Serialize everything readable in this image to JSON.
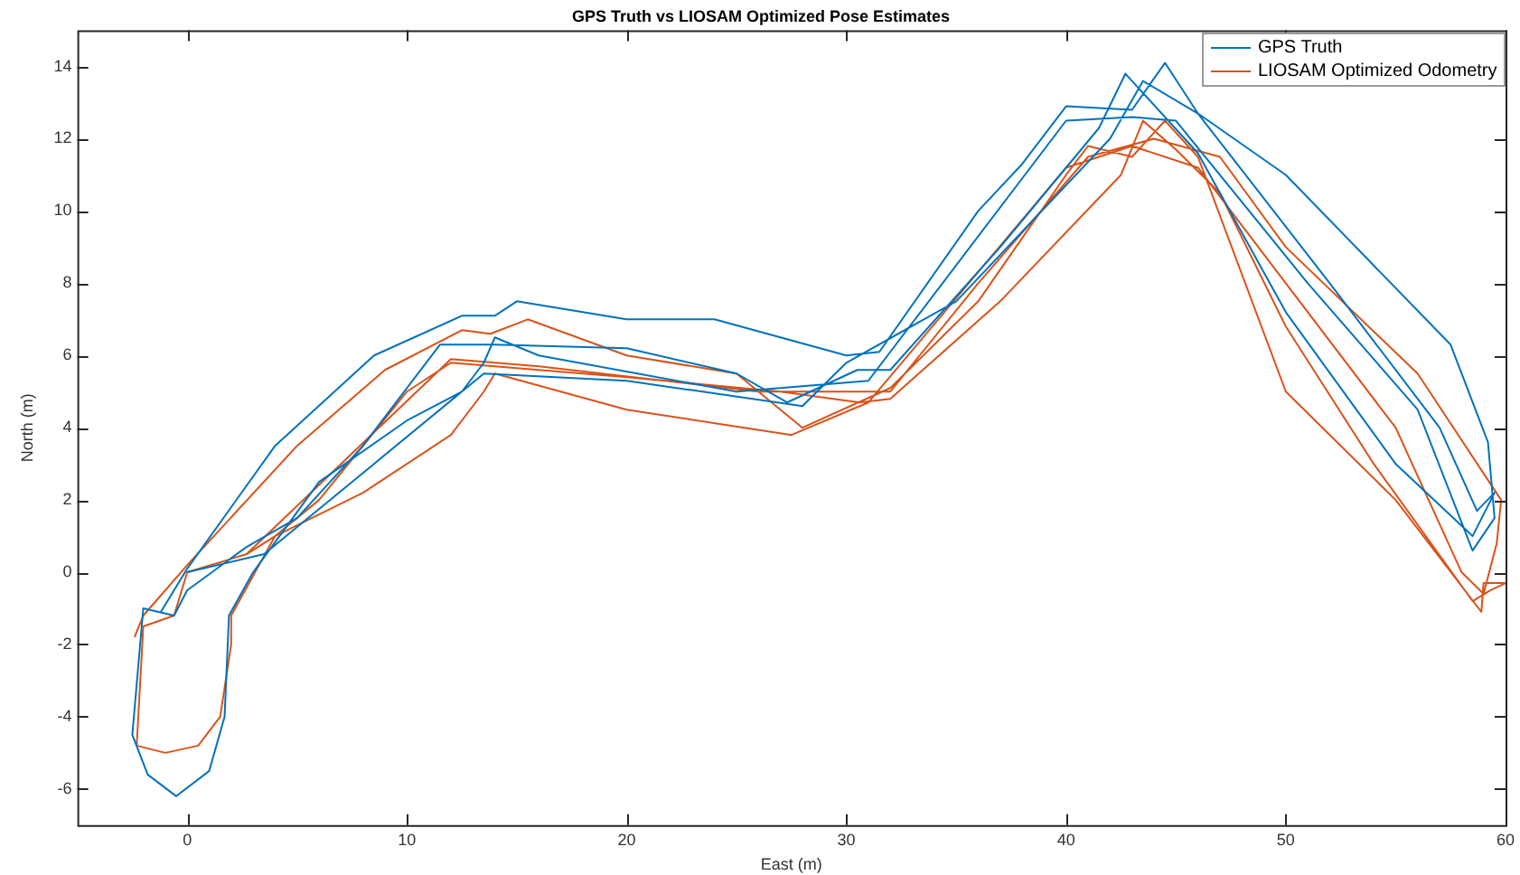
{
  "chart_data": {
    "type": "line",
    "title": "GPS Truth vs LIOSAM Optimized Pose Estimates",
    "xlabel": "East (m)",
    "ylabel": "North (m)",
    "xlim": [
      -5,
      60
    ],
    "xticks": [
      0,
      10,
      20,
      30,
      40,
      50,
      60
    ],
    "ylim": [
      -7,
      15
    ],
    "yticks": [
      -6,
      -4,
      -2,
      0,
      2,
      4,
      6,
      8,
      10,
      12,
      14
    ],
    "grid": false,
    "legend": "top right",
    "marker": "none",
    "line_style": "solid",
    "series": [
      {
        "name": "GPS Truth",
        "color": "#0072bd",
        "x": [
          -1.2,
          0,
          4,
          8.5,
          12.5,
          14,
          15,
          20,
          24,
          30,
          31.5,
          36,
          38,
          40,
          43,
          44.5,
          46,
          52,
          57,
          58.7,
          59.5,
          58.5,
          55,
          50,
          46,
          42.7,
          41.5,
          37,
          32,
          30.5,
          27.3,
          25,
          20,
          14,
          11.5,
          8,
          5,
          2.7,
          0,
          -0.6,
          -2,
          -2.5,
          -1.8,
          -0.5,
          1,
          1.7,
          1.9,
          3,
          6,
          10,
          12.5,
          13.5,
          14,
          16,
          25,
          31,
          40,
          43,
          45,
          51,
          56,
          58.5,
          59.5,
          59.2,
          57.5,
          50,
          46,
          43.5,
          42,
          35,
          30,
          28,
          20,
          13.5,
          8.5,
          3.5,
          0
        ],
        "values": [
          -1.1,
          0.1,
          3.5,
          6,
          7.1,
          7.1,
          7.5,
          7,
          7,
          6,
          6.1,
          10,
          11.3,
          12.9,
          12.8,
          14.1,
          12.7,
          8,
          4,
          1.7,
          2.2,
          1,
          3,
          7.2,
          11.6,
          13.8,
          12.3,
          9,
          5.6,
          5.6,
          4.7,
          5.5,
          6.2,
          6.3,
          6.3,
          3.5,
          1.5,
          0.7,
          -0.5,
          -1.2,
          -1,
          -4.5,
          -5.6,
          -6.2,
          -5.5,
          -4,
          -1.2,
          0,
          2.5,
          4.2,
          5,
          5.8,
          6.5,
          6,
          5,
          5.3,
          12.5,
          12.6,
          12.5,
          8,
          4.5,
          0.6,
          1.5,
          3.6,
          6.3,
          11,
          12.7,
          13.6,
          12,
          7.5,
          5.8,
          4.6,
          5.3,
          5.5,
          3,
          0.5,
          0
        ]
      },
      {
        "name": "LIOSAM Optimized Odometry",
        "color": "#d95319",
        "x": [
          -2.4,
          -2,
          0,
          5,
          9,
          12.5,
          13.8,
          15.5,
          20,
          25,
          28,
          32,
          36,
          40,
          41,
          43,
          44.5,
          46,
          50,
          55,
          58.9,
          59,
          60,
          59.3,
          58.5,
          54,
          50,
          47,
          45,
          43.5,
          42.5,
          37,
          32,
          30.6,
          27,
          20,
          12,
          10,
          6,
          4,
          2.7,
          0,
          -0.6,
          -2,
          -2.3,
          -1,
          0.5,
          1.5,
          2,
          2,
          4,
          8,
          12,
          13.5,
          14,
          20,
          27.5,
          31,
          40,
          43,
          46,
          55,
          58,
          59,
          59.6,
          59.8,
          56,
          50,
          47,
          44,
          41,
          36,
          32,
          26,
          16,
          12,
          7,
          2.7,
          0
        ],
        "values": [
          -1.8,
          -1.2,
          0.2,
          3.5,
          5.6,
          6.7,
          6.6,
          7,
          6,
          5.5,
          4,
          5.1,
          7.5,
          11,
          11.8,
          11.5,
          12.5,
          11.5,
          5,
          2,
          -1.1,
          -0.3,
          -0.3,
          -0.5,
          -0.8,
          3,
          6.8,
          10.5,
          11.7,
          12.5,
          11,
          7.5,
          4.8,
          4.7,
          5,
          5.4,
          5.8,
          5,
          2,
          1,
          0.5,
          0,
          -1.2,
          -1.5,
          -4.8,
          -5,
          -4.8,
          -4,
          -2,
          -1.2,
          1,
          2.2,
          3.8,
          5,
          5.5,
          4.5,
          3.8,
          4.7,
          11.2,
          11.8,
          11.2,
          4,
          0,
          -0.6,
          0.8,
          2,
          5.5,
          9,
          11.5,
          12,
          11.5,
          8,
          5,
          5,
          5.7,
          5.9,
          3,
          0.5,
          0
        ]
      }
    ]
  }
}
